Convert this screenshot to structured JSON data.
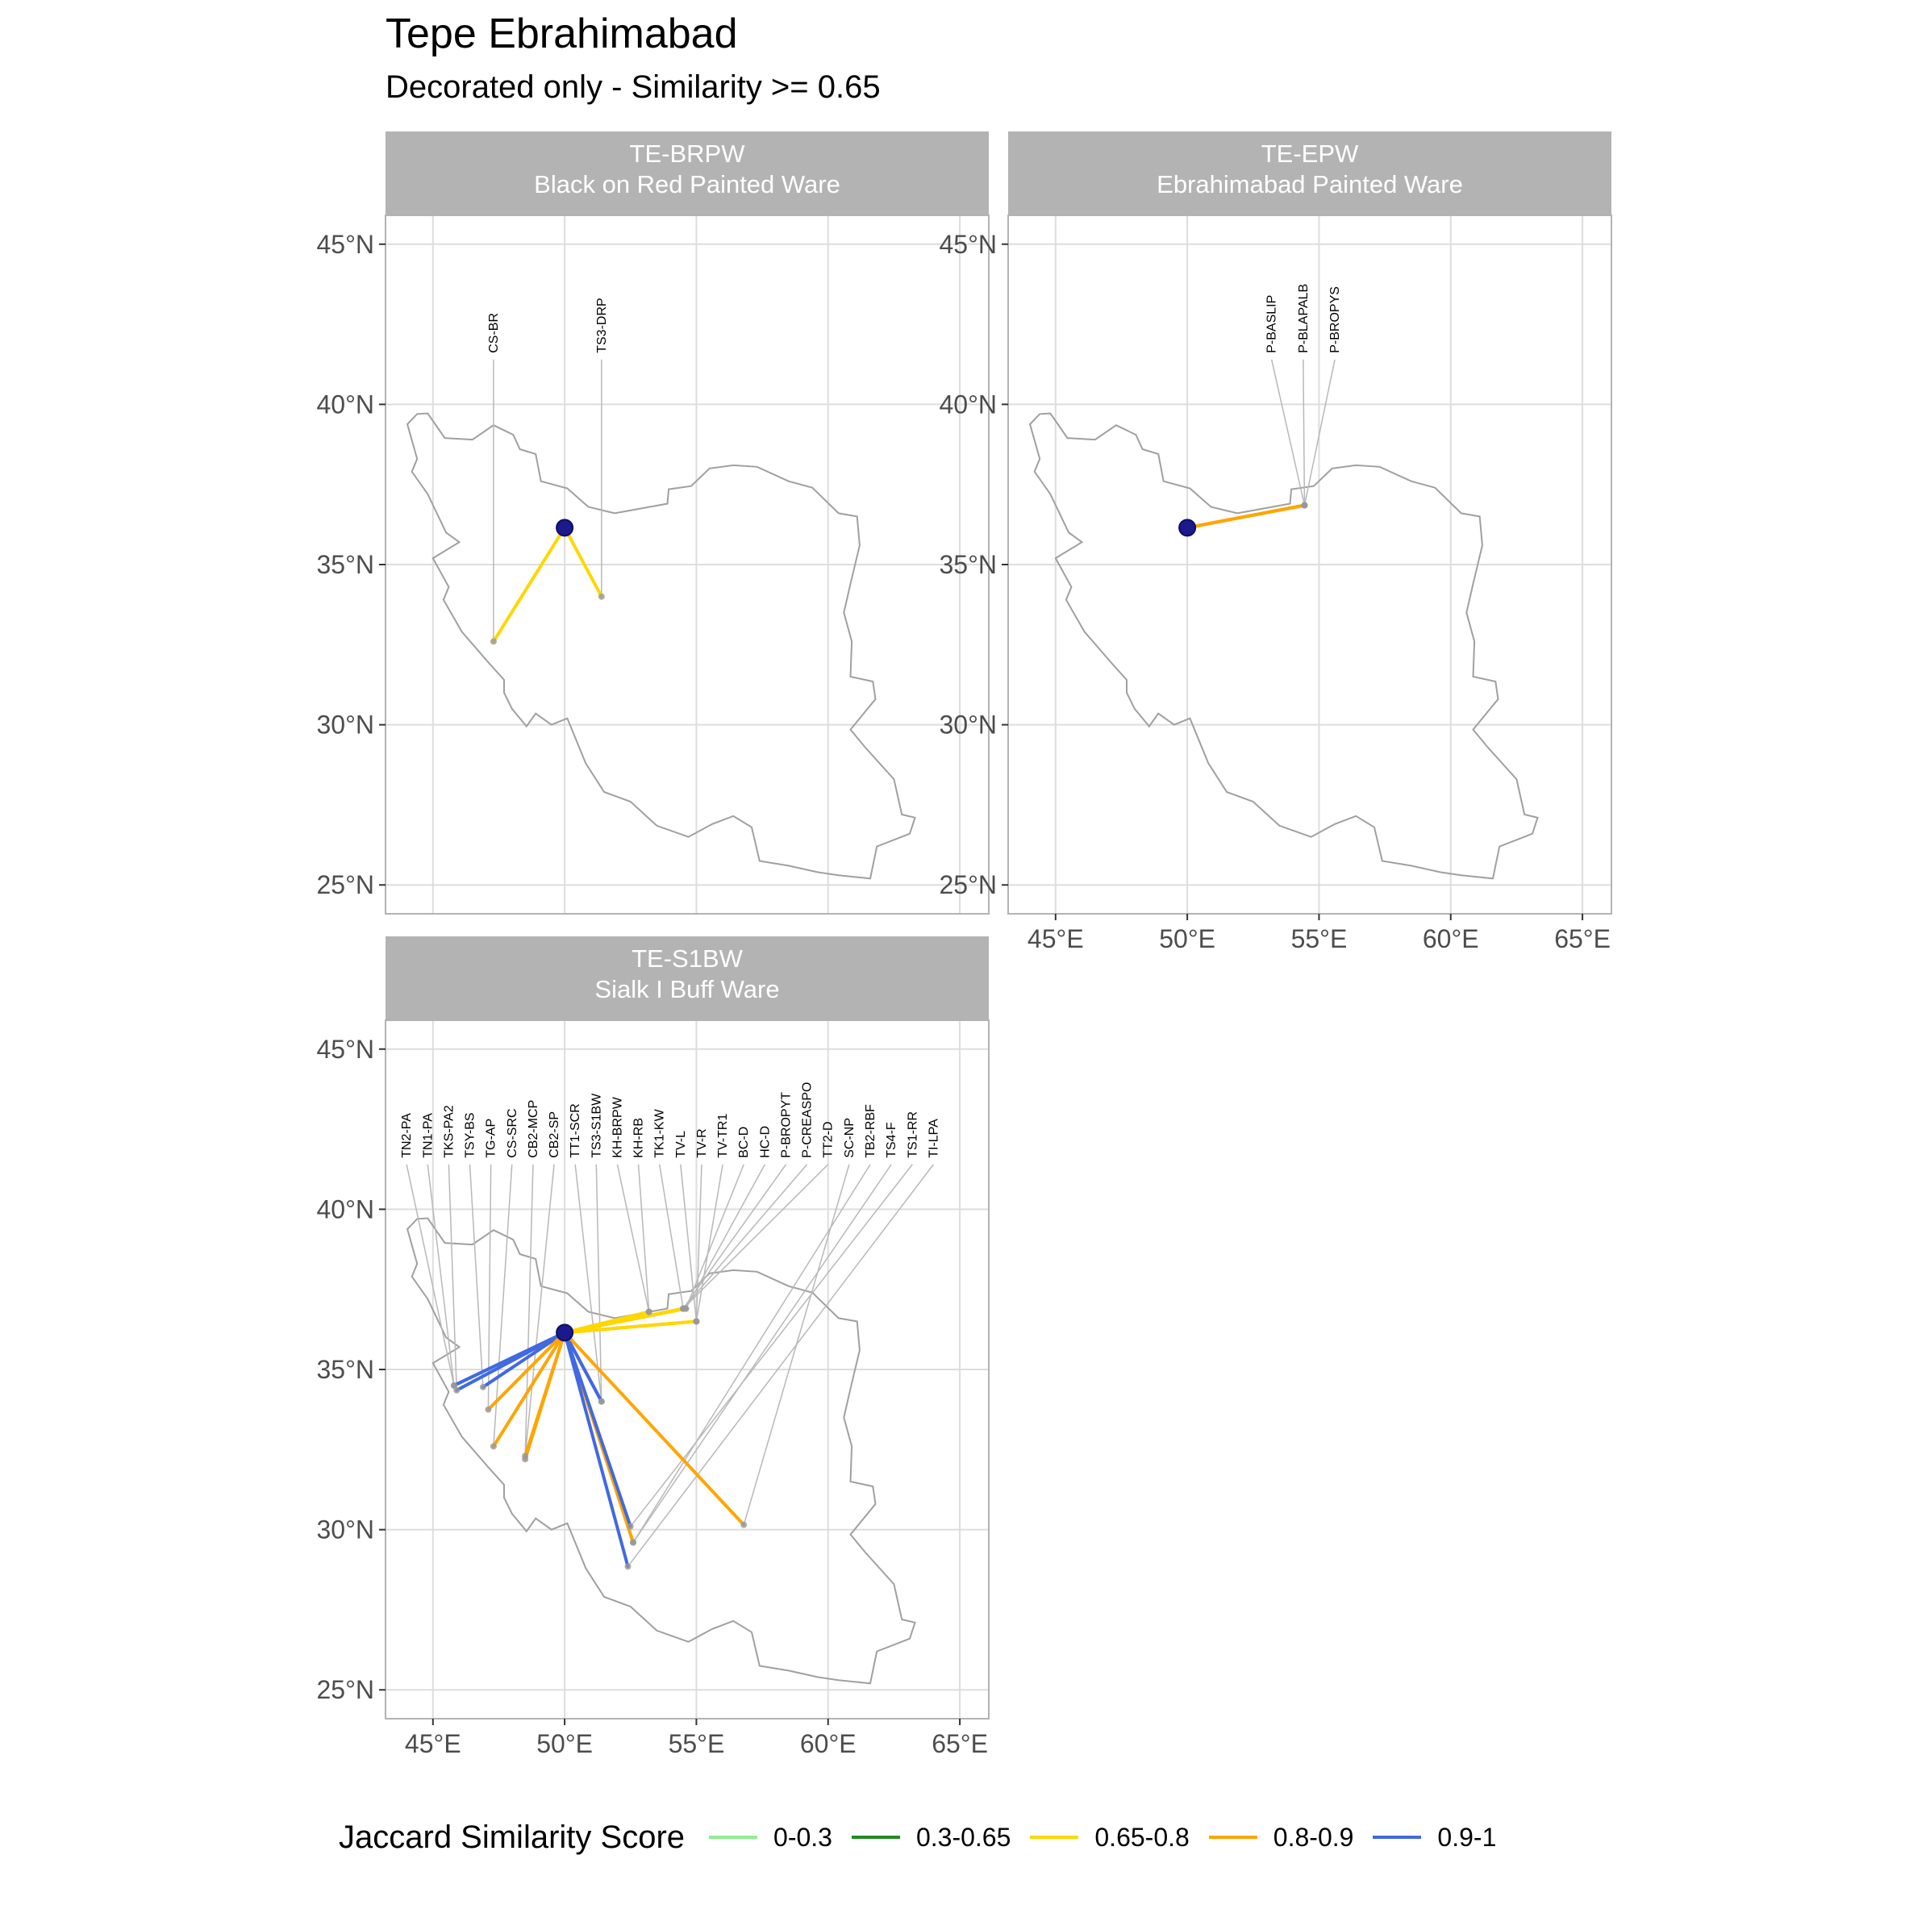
{
  "title": "Tepe Ebrahimabad",
  "subtitle": "Decorated only - Similarity >= 0.65",
  "colors": {
    "panel_border": "#b3b3b3",
    "strip_fill": "#b3b3b3",
    "grid": "#dddddd",
    "outline": "#a0a0a0",
    "leader": "#b8b8b8",
    "origin": "#1a1a8c",
    "site_point": "#999999"
  },
  "axes": {
    "lon_ticks": [
      45,
      50,
      55,
      60,
      65
    ],
    "lat_ticks": [
      25,
      30,
      35,
      40,
      45
    ],
    "lon_tick_labels": [
      "45°E",
      "50°E",
      "55°E",
      "60°E",
      "65°E"
    ],
    "lat_tick_labels": [
      "25°N",
      "30°N",
      "35°N",
      "40°N",
      "45°N"
    ],
    "xlim": [
      43.2,
      66.1
    ],
    "ylim": [
      24.1,
      45.9
    ]
  },
  "origin": {
    "name": "Tepe Ebrahimabad",
    "lon": 50.0,
    "lat": 36.15
  },
  "legend": {
    "title": "Jaccard Similarity Score",
    "items": [
      {
        "label": "0-0.3",
        "color": "#90ee90"
      },
      {
        "label": "0.3-0.65",
        "color": "#228b22"
      },
      {
        "label": "0.65-0.8",
        "color": "#ffd700"
      },
      {
        "label": "0.8-0.9",
        "color": "#ffa500"
      },
      {
        "label": "0.9-1",
        "color": "#4169e1"
      }
    ]
  },
  "chart_data": [
    {
      "type": "scatter",
      "panel": "TE-BRPW",
      "strip": [
        "TE-BRPW",
        "Black on Red Painted Ware"
      ],
      "links": [
        {
          "label": "CS-BR",
          "lon": 47.3,
          "lat": 32.6,
          "class": "0.65-0.8"
        },
        {
          "label": "TS3-DRP",
          "lon": 51.4,
          "lat": 34.0,
          "class": "0.65-0.8"
        }
      ]
    },
    {
      "type": "scatter",
      "panel": "TE-EPW",
      "strip": [
        "TE-EPW",
        "Ebrahimabad Painted Ware"
      ],
      "links": [
        {
          "label": "P-BASLIP",
          "lon": 54.45,
          "lat": 36.85,
          "class": "0.8-0.9"
        },
        {
          "label": "P-BLAPALB",
          "lon": 54.45,
          "lat": 36.85,
          "class": "0.8-0.9"
        },
        {
          "label": "P-BROPYS",
          "lon": 54.45,
          "lat": 36.85,
          "class": "0.8-0.9"
        }
      ]
    },
    {
      "type": "scatter",
      "panel": "TE-S1BW",
      "strip": [
        "TE-S1BW",
        "Sialk I Buff Ware"
      ],
      "links": [
        {
          "label": "TN2-PA",
          "lon": 45.8,
          "lat": 34.5,
          "class": "0.9-1"
        },
        {
          "label": "TN1-PA",
          "lon": 45.8,
          "lat": 34.5,
          "class": "0.9-1"
        },
        {
          "label": "TKS-PA2",
          "lon": 45.9,
          "lat": 34.35,
          "class": "0.9-1"
        },
        {
          "label": "TSY-BS",
          "lon": 46.9,
          "lat": 34.45,
          "class": "0.9-1"
        },
        {
          "label": "TG-AP",
          "lon": 47.1,
          "lat": 33.75,
          "class": "0.8-0.9"
        },
        {
          "label": "CS-SRC",
          "lon": 47.3,
          "lat": 32.6,
          "class": "0.8-0.9"
        },
        {
          "label": "CB2-MCP",
          "lon": 48.5,
          "lat": 32.2,
          "class": "0.8-0.9"
        },
        {
          "label": "CB2-SP",
          "lon": 48.5,
          "lat": 32.3,
          "class": "0.8-0.9"
        },
        {
          "label": "TT1-SCR",
          "lon": 51.4,
          "lat": 34.0,
          "class": "0.9-1"
        },
        {
          "label": "TS3-S1BW",
          "lon": 51.4,
          "lat": 34.0,
          "class": "0.9-1"
        },
        {
          "label": "KH-BRPW",
          "lon": 53.2,
          "lat": 36.8,
          "class": "0.65-0.8"
        },
        {
          "label": "KH-RB",
          "lon": 53.2,
          "lat": 36.8,
          "class": "0.65-0.8"
        },
        {
          "label": "TK1-KW",
          "lon": 54.5,
          "lat": 36.9,
          "class": "0.65-0.8"
        },
        {
          "label": "TV-L",
          "lon": 55.0,
          "lat": 36.5,
          "class": "0.65-0.8"
        },
        {
          "label": "TV-R",
          "lon": 55.0,
          "lat": 36.5,
          "class": "0.65-0.8"
        },
        {
          "label": "TV-TR1",
          "lon": 55.0,
          "lat": 36.5,
          "class": "0.65-0.8"
        },
        {
          "label": "BC-D",
          "lon": 54.6,
          "lat": 36.9,
          "class": "0.65-0.8"
        },
        {
          "label": "HC-D",
          "lon": 54.6,
          "lat": 36.9,
          "class": "0.65-0.8"
        },
        {
          "label": "P-BROPYT",
          "lon": 54.5,
          "lat": 36.9,
          "class": "0.65-0.8"
        },
        {
          "label": "P-CREASPO",
          "lon": 54.5,
          "lat": 36.9,
          "class": "0.65-0.8"
        },
        {
          "label": "TT2-D",
          "lon": 54.5,
          "lat": 36.9,
          "class": "0.65-0.8"
        },
        {
          "label": "SC-NP",
          "lon": 56.8,
          "lat": 30.15,
          "class": "0.8-0.9"
        },
        {
          "label": "TB2-RBF",
          "lon": 52.6,
          "lat": 29.6,
          "class": "0.8-0.9"
        },
        {
          "label": "TS4-F",
          "lon": 52.6,
          "lat": 29.6,
          "class": "0.8-0.9"
        },
        {
          "label": "TS1-RR",
          "lon": 52.5,
          "lat": 30.1,
          "class": "0.9-1"
        },
        {
          "label": "TI-LPA",
          "lon": 52.4,
          "lat": 28.85,
          "class": "0.9-1"
        }
      ]
    }
  ]
}
